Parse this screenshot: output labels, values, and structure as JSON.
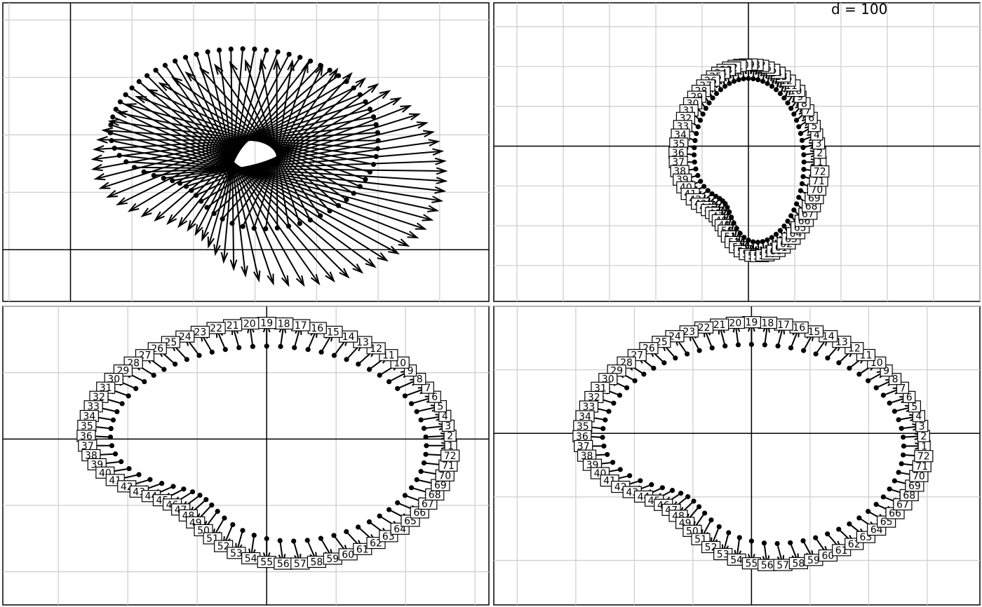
{
  "d_label": "d = 100",
  "palette": {
    "line": "#000000",
    "grid": "#d0d0d0",
    "background": "#ffffff"
  },
  "chart_data": [
    {
      "type": "scatter",
      "description": "Point-to-point arrows (no labels); arrows from a closed loop fan out toward a second loop",
      "title": "",
      "grid": true,
      "xlim": [
        -1.1,
        6.8
      ],
      "ylim": [
        -0.9,
        4.3
      ],
      "n_points": 72,
      "start_loop": {
        "cx": 2.8,
        "cy": 1.9,
        "rx": 2.2,
        "ry": 1.6
      },
      "end_loop": {
        "cx": 3.2,
        "cy": 1.3,
        "rx": 2.9,
        "ry": 2.0
      },
      "labels": false
    },
    {
      "type": "scatter",
      "description": "Labelled points 1-72 with short arrows on a closed loop",
      "title": "",
      "grid": true,
      "xlim": [
        -5.5,
        5.0
      ],
      "ylim": [
        -3.9,
        3.6
      ],
      "n_points": 72,
      "loop": {
        "cx": 0.0,
        "cy": -0.4,
        "rx": 1.2,
        "ry": 2.1
      },
      "labels": true
    },
    {
      "type": "scatter",
      "description": "Labelled points 1-72 with short arrows on a crescent-shaped loop",
      "title": "",
      "grid": true,
      "xlim": [
        -3.8,
        3.2
      ],
      "ylim": [
        -2.5,
        2.0
      ],
      "n_points": 72,
      "loop": {
        "cx": 0.0,
        "cy": -0.1,
        "rx": 2.3,
        "ry": 1.5
      },
      "labels": true
    },
    {
      "type": "scatter",
      "description": "Labelled points 1-72 with short arrows on a crescent-shaped loop",
      "title": "",
      "grid": true,
      "xlim": [
        -4.4,
        3.9
      ],
      "ylim": [
        -2.7,
        2.0
      ],
      "n_points": 72,
      "loop": {
        "cx": 0.0,
        "cy": -0.2,
        "rx": 2.6,
        "ry": 1.6
      },
      "labels": true
    }
  ]
}
